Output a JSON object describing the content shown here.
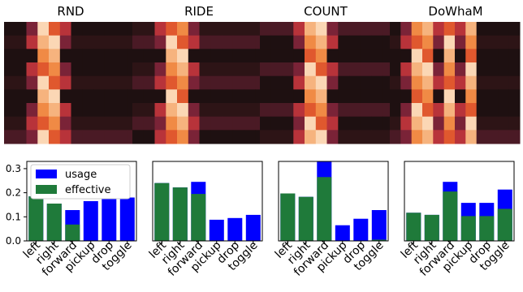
{
  "figure": {
    "heatmaps": [
      {
        "title": "RND"
      },
      {
        "title": "RIDE"
      },
      {
        "title": "COUNT"
      },
      {
        "title": "DoWhaM"
      }
    ]
  },
  "chart_data": [
    {
      "type": "bar",
      "panel": "RND",
      "categories": [
        "left",
        "right",
        "forward",
        "pickup",
        "drop",
        "toggle"
      ],
      "series": [
        {
          "name": "usage",
          "values": [
            0.185,
            0.155,
            0.128,
            0.165,
            0.18,
            0.18
          ]
        },
        {
          "name": "effective",
          "values": [
            0.185,
            0.155,
            0.068,
            0.0,
            0.0,
            0.0
          ]
        }
      ],
      "ylim": [
        0,
        0.33
      ],
      "yticks": [
        "0.0",
        "0.1",
        "0.2",
        "0.3"
      ],
      "legend": "top-left",
      "colors": {
        "usage": "#0000ff",
        "effective": "#1f7a3a"
      }
    },
    {
      "type": "bar",
      "panel": "RIDE",
      "categories": [
        "left",
        "right",
        "forward",
        "pickup",
        "drop",
        "toggle"
      ],
      "series": [
        {
          "name": "usage",
          "values": [
            0.24,
            0.222,
            0.245,
            0.088,
            0.095,
            0.108
          ]
        },
        {
          "name": "effective",
          "values": [
            0.24,
            0.222,
            0.195,
            0.0,
            0.0,
            0.0
          ]
        }
      ],
      "ylim": [
        0,
        0.33
      ]
    },
    {
      "type": "bar",
      "panel": "COUNT",
      "categories": [
        "left",
        "right",
        "forward",
        "pickup",
        "drop",
        "toggle"
      ],
      "series": [
        {
          "name": "usage",
          "values": [
            0.197,
            0.183,
            0.33,
            0.065,
            0.092,
            0.128
          ]
        },
        {
          "name": "effective",
          "values": [
            0.197,
            0.183,
            0.265,
            0.0,
            0.0,
            0.005
          ]
        }
      ],
      "ylim": [
        0,
        0.33
      ]
    },
    {
      "type": "bar",
      "panel": "DoWhaM",
      "categories": [
        "left",
        "right",
        "forward",
        "pickup",
        "drop",
        "toggle"
      ],
      "series": [
        {
          "name": "usage",
          "values": [
            0.117,
            0.108,
            0.245,
            0.158,
            0.158,
            0.213
          ]
        },
        {
          "name": "effective",
          "values": [
            0.117,
            0.108,
            0.205,
            0.103,
            0.103,
            0.133
          ]
        }
      ],
      "ylim": [
        0,
        0.33
      ]
    }
  ]
}
